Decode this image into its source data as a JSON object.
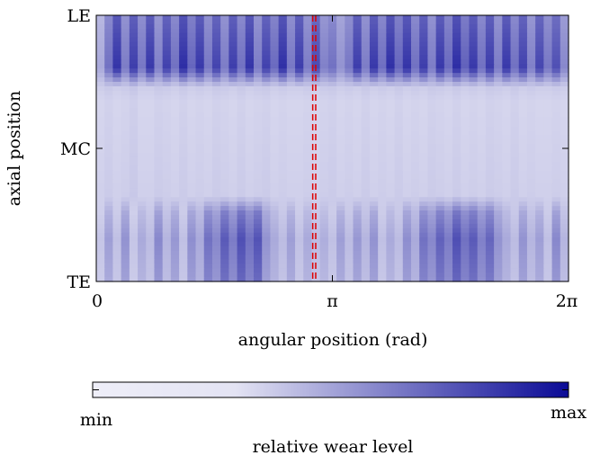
{
  "chart_data": {
    "type": "heatmap",
    "title": "",
    "xlabel": "angular position (rad)",
    "ylabel": "axial position",
    "xlim": [
      0,
      6.2832
    ],
    "x_ticks": [
      {
        "value": 0,
        "label": "0"
      },
      {
        "value": 3.1416,
        "label": "π"
      },
      {
        "value": 6.2832,
        "label": "2π"
      }
    ],
    "y_ticks": [
      {
        "value": 0,
        "label": "LE"
      },
      {
        "value": 0.5,
        "label": "MC"
      },
      {
        "value": 1,
        "label": "TE"
      }
    ],
    "colorbar": {
      "label": "relative wear level",
      "min_label": "min",
      "max_label": "max",
      "color_min": "#eeeef8",
      "color_max": "#0a0a96",
      "placement": "bottom"
    },
    "axial_zones": [
      {
        "name": "LE",
        "from": 0.0,
        "to": 0.28
      },
      {
        "name": "MC",
        "from": 0.28,
        "to": 0.72
      },
      {
        "name": "TE",
        "from": 0.72,
        "to": 1.0
      }
    ],
    "angular_profile": {
      "LE": [
        0.3,
        0.55,
        0.82,
        0.5,
        0.78,
        0.52,
        0.8,
        0.48,
        0.76,
        0.55,
        0.85,
        0.6,
        0.8,
        0.52,
        0.75,
        0.5,
        0.78,
        0.55,
        0.82,
        0.5,
        0.76,
        0.58,
        0.84,
        0.52,
        0.78,
        0.5,
        0.72,
        0.48,
        0.55,
        0.4,
        0.52,
        0.78,
        0.5,
        0.8,
        0.56,
        0.84,
        0.6,
        0.82,
        0.55,
        0.78,
        0.5,
        0.8,
        0.58,
        0.85,
        0.62,
        0.8,
        0.55,
        0.78,
        0.5,
        0.8,
        0.55,
        0.76,
        0.48,
        0.74,
        0.52,
        0.7,
        0.45
      ],
      "MC": [
        0.12,
        0.14,
        0.12,
        0.13,
        0.15,
        0.12,
        0.12,
        0.14,
        0.13,
        0.12,
        0.14,
        0.12,
        0.13,
        0.12,
        0.14,
        0.13,
        0.12,
        0.14,
        0.12,
        0.13,
        0.14,
        0.12,
        0.13,
        0.12,
        0.12,
        0.13,
        0.12,
        0.13,
        0.14,
        0.12,
        0.13,
        0.12,
        0.14,
        0.12,
        0.13,
        0.12,
        0.14,
        0.12,
        0.13,
        0.12,
        0.14,
        0.13,
        0.12,
        0.14,
        0.12,
        0.13,
        0.12,
        0.14,
        0.13,
        0.12,
        0.14,
        0.12,
        0.13,
        0.12,
        0.12,
        0.13,
        0.12
      ],
      "TE": [
        0.18,
        0.35,
        0.2,
        0.4,
        0.18,
        0.3,
        0.22,
        0.45,
        0.25,
        0.38,
        0.2,
        0.42,
        0.3,
        0.55,
        0.45,
        0.65,
        0.5,
        0.7,
        0.55,
        0.68,
        0.4,
        0.3,
        0.22,
        0.35,
        0.2,
        0.3,
        0.22,
        0.28,
        0.2,
        0.35,
        0.22,
        0.38,
        0.25,
        0.4,
        0.2,
        0.3,
        0.22,
        0.42,
        0.3,
        0.55,
        0.45,
        0.62,
        0.5,
        0.7,
        0.55,
        0.65,
        0.48,
        0.6,
        0.4,
        0.3,
        0.22,
        0.4,
        0.25,
        0.35,
        0.2,
        0.45,
        0.25
      ]
    },
    "markers": [
      {
        "type": "vertical_dashed_line",
        "x": 2.88,
        "color": "#e00000"
      },
      {
        "type": "vertical_dashed_line",
        "x": 2.92,
        "color": "#e00000"
      }
    ],
    "grid": false,
    "legend": "none"
  }
}
